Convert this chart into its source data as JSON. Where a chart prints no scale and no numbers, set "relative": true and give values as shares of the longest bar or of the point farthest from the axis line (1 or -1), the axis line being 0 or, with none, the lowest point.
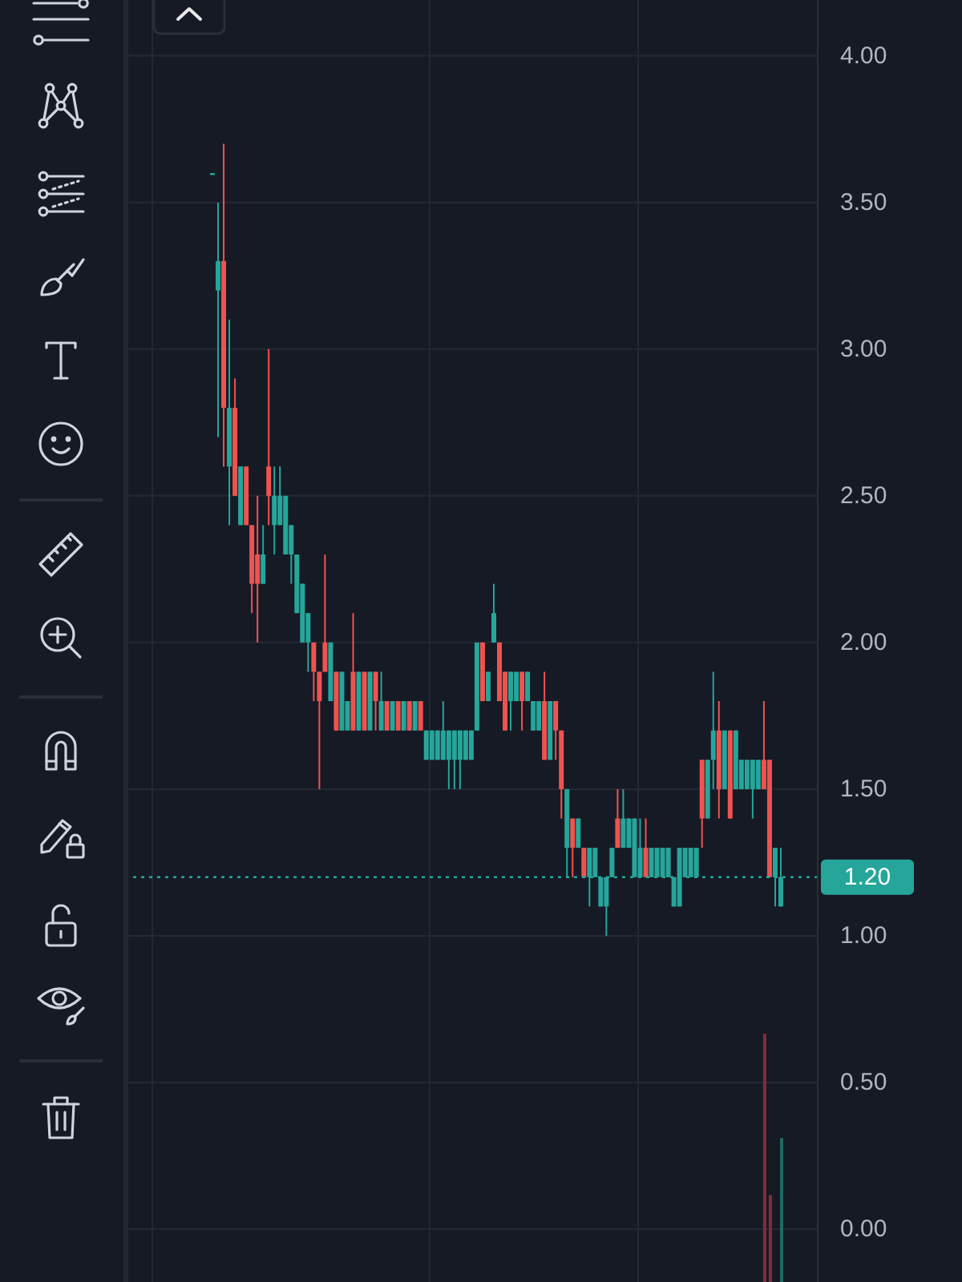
{
  "chart_data": [
    {
      "type": "candlestick",
      "categories": [
        null,
        null,
        null,
        null,
        null,
        null,
        null,
        null,
        null,
        null,
        null,
        null,
        null,
        null,
        null,
        null,
        null,
        null,
        null,
        null,
        null,
        null,
        null,
        null,
        null,
        null,
        null,
        null,
        null,
        null,
        null,
        null,
        null,
        null,
        null,
        null,
        null,
        null,
        null,
        null,
        null,
        null,
        null,
        null,
        null,
        null,
        null,
        null,
        null,
        null,
        null,
        null,
        null,
        null,
        null,
        null,
        null,
        null,
        null,
        null,
        null,
        null,
        null,
        null,
        null,
        null,
        null,
        null,
        null,
        null,
        null,
        null,
        null,
        null,
        null,
        null,
        null,
        null,
        null,
        null,
        null,
        null,
        null,
        null,
        null,
        null,
        null,
        null,
        null,
        null,
        null,
        null,
        null,
        null,
        null,
        null,
        null,
        null,
        null,
        null,
        null,
        null
      ],
      "ohlc": [
        [
          3.6,
          3.6,
          3.6,
          3.6
        ],
        [
          3.2,
          3.5,
          2.7,
          3.3
        ],
        [
          3.3,
          3.7,
          2.6,
          2.8
        ],
        [
          2.6,
          3.1,
          2.4,
          2.8
        ],
        [
          2.8,
          2.9,
          2.5,
          2.5
        ],
        [
          2.4,
          2.6,
          2.4,
          2.6
        ],
        [
          2.6,
          2.6,
          2.4,
          2.4
        ],
        [
          2.4,
          2.4,
          2.1,
          2.2
        ],
        [
          2.3,
          2.5,
          2.0,
          2.2
        ],
        [
          2.2,
          2.4,
          2.2,
          2.3
        ],
        [
          2.6,
          3.0,
          2.4,
          2.5
        ],
        [
          2.4,
          2.6,
          2.3,
          2.5
        ],
        [
          2.4,
          2.6,
          2.4,
          2.5
        ],
        [
          2.3,
          2.5,
          2.3,
          2.5
        ],
        [
          2.3,
          2.4,
          2.2,
          2.4
        ],
        [
          2.1,
          2.3,
          2.1,
          2.3
        ],
        [
          2.0,
          2.2,
          2.0,
          2.2
        ],
        [
          2.0,
          2.1,
          1.9,
          2.1
        ],
        [
          2.0,
          2.0,
          1.8,
          1.9
        ],
        [
          1.9,
          1.9,
          1.5,
          1.8
        ],
        [
          2.0,
          2.3,
          1.9,
          1.9
        ],
        [
          1.8,
          2.0,
          1.8,
          2.0
        ],
        [
          1.9,
          1.9,
          1.7,
          1.7
        ],
        [
          1.7,
          1.9,
          1.7,
          1.9
        ],
        [
          1.7,
          1.8,
          1.7,
          1.8
        ],
        [
          1.9,
          2.1,
          1.7,
          1.7
        ],
        [
          1.7,
          1.9,
          1.7,
          1.9
        ],
        [
          1.9,
          1.9,
          1.7,
          1.7
        ],
        [
          1.7,
          1.9,
          1.7,
          1.9
        ],
        [
          1.9,
          1.9,
          1.7,
          1.8
        ],
        [
          1.7,
          1.9,
          1.7,
          1.8
        ],
        [
          1.8,
          1.8,
          1.7,
          1.7
        ],
        [
          1.7,
          1.8,
          1.7,
          1.8
        ],
        [
          1.8,
          1.8,
          1.7,
          1.7
        ],
        [
          1.7,
          1.8,
          1.7,
          1.8
        ],
        [
          1.8,
          1.8,
          1.7,
          1.7
        ],
        [
          1.7,
          1.8,
          1.7,
          1.8
        ],
        [
          1.8,
          1.8,
          1.7,
          1.7
        ],
        [
          1.6,
          1.7,
          1.6,
          1.7
        ],
        [
          1.6,
          1.7,
          1.6,
          1.7
        ],
        [
          1.6,
          1.7,
          1.6,
          1.7
        ],
        [
          1.6,
          1.8,
          1.6,
          1.7
        ],
        [
          1.6,
          1.7,
          1.5,
          1.7
        ],
        [
          1.6,
          1.7,
          1.5,
          1.7
        ],
        [
          1.6,
          1.7,
          1.5,
          1.7
        ],
        [
          1.6,
          1.7,
          1.6,
          1.7
        ],
        [
          1.6,
          1.7,
          1.6,
          1.7
        ],
        [
          1.7,
          2.0,
          1.7,
          2.0
        ],
        [
          2.0,
          2.0,
          1.8,
          1.8
        ],
        [
          1.8,
          1.9,
          1.8,
          1.9
        ],
        [
          2.0,
          2.2,
          2.0,
          2.1
        ],
        [
          2.0,
          2.0,
          1.8,
          1.8
        ],
        [
          1.9,
          1.9,
          1.7,
          1.7
        ],
        [
          1.8,
          1.9,
          1.7,
          1.9
        ],
        [
          1.8,
          1.9,
          1.8,
          1.9
        ],
        [
          1.9,
          1.9,
          1.7,
          1.8
        ],
        [
          1.8,
          1.9,
          1.8,
          1.9
        ],
        [
          1.7,
          1.8,
          1.7,
          1.8
        ],
        [
          1.7,
          1.8,
          1.7,
          1.8
        ],
        [
          1.8,
          1.9,
          1.6,
          1.6
        ],
        [
          1.6,
          1.8,
          1.6,
          1.8
        ],
        [
          1.8,
          1.8,
          1.6,
          1.7
        ],
        [
          1.7,
          1.7,
          1.4,
          1.5
        ],
        [
          1.3,
          1.5,
          1.2,
          1.5
        ],
        [
          1.4,
          1.4,
          1.2,
          1.3
        ],
        [
          1.3,
          1.4,
          1.3,
          1.4
        ],
        [
          1.3,
          1.3,
          1.2,
          1.2
        ],
        [
          1.2,
          1.3,
          1.1,
          1.3
        ],
        [
          1.2,
          1.3,
          1.2,
          1.3
        ],
        [
          1.1,
          1.2,
          1.1,
          1.2
        ],
        [
          1.1,
          1.2,
          1.0,
          1.2
        ],
        [
          1.2,
          1.3,
          1.2,
          1.3
        ],
        [
          1.4,
          1.5,
          1.3,
          1.3
        ],
        [
          1.3,
          1.5,
          1.3,
          1.4
        ],
        [
          1.3,
          1.4,
          1.3,
          1.4
        ],
        [
          1.2,
          1.4,
          1.2,
          1.4
        ],
        [
          1.2,
          1.4,
          1.2,
          1.3
        ],
        [
          1.3,
          1.4,
          1.2,
          1.2
        ],
        [
          1.2,
          1.3,
          1.2,
          1.3
        ],
        [
          1.2,
          1.3,
          1.2,
          1.3
        ],
        [
          1.2,
          1.3,
          1.2,
          1.3
        ],
        [
          1.2,
          1.3,
          1.2,
          1.3
        ],
        [
          1.1,
          1.2,
          1.1,
          1.2
        ],
        [
          1.1,
          1.3,
          1.1,
          1.3
        ],
        [
          1.2,
          1.3,
          1.2,
          1.3
        ],
        [
          1.2,
          1.3,
          1.2,
          1.3
        ],
        [
          1.2,
          1.3,
          1.2,
          1.3
        ],
        [
          1.6,
          1.6,
          1.3,
          1.4
        ],
        [
          1.4,
          1.6,
          1.4,
          1.6
        ],
        [
          1.6,
          1.9,
          1.5,
          1.7
        ],
        [
          1.7,
          1.8,
          1.4,
          1.5
        ],
        [
          1.5,
          1.7,
          1.5,
          1.7
        ],
        [
          1.7,
          1.7,
          1.4,
          1.4
        ],
        [
          1.5,
          1.7,
          1.5,
          1.7
        ],
        [
          1.5,
          1.6,
          1.5,
          1.6
        ],
        [
          1.5,
          1.6,
          1.5,
          1.6
        ],
        [
          1.5,
          1.6,
          1.4,
          1.6
        ],
        [
          1.5,
          1.6,
          1.5,
          1.6
        ],
        [
          1.6,
          1.8,
          1.5,
          1.5
        ],
        [
          1.6,
          1.6,
          1.2,
          1.2
        ],
        [
          1.2,
          1.3,
          1.1,
          1.3
        ],
        [
          1.1,
          1.3,
          1.1,
          1.2
        ]
      ],
      "colors": [
        "#26a69a",
        "#26a69a",
        "#ef5350",
        "#26a69a",
        "#ef5350",
        "#26a69a",
        "#ef5350",
        "#ef5350",
        "#ef5350",
        "#26a69a",
        "#ef5350",
        "#26a69a",
        "#26a69a",
        "#26a69a",
        "#26a69a",
        "#26a69a",
        "#26a69a",
        "#26a69a",
        "#ef5350",
        "#ef5350",
        "#ef5350",
        "#26a69a",
        "#ef5350",
        "#26a69a",
        "#26a69a",
        "#ef5350",
        "#26a69a",
        "#ef5350",
        "#26a69a",
        "#ef5350",
        "#26a69a",
        "#ef5350",
        "#26a69a",
        "#ef5350",
        "#26a69a",
        "#ef5350",
        "#26a69a",
        "#ef5350",
        "#26a69a",
        "#26a69a",
        "#26a69a",
        "#26a69a",
        "#26a69a",
        "#26a69a",
        "#26a69a",
        "#26a69a",
        "#26a69a",
        "#26a69a",
        "#ef5350",
        "#26a69a",
        "#26a69a",
        "#ef5350",
        "#ef5350",
        "#26a69a",
        "#26a69a",
        "#ef5350",
        "#26a69a",
        "#26a69a",
        "#26a69a",
        "#ef5350",
        "#26a69a",
        "#ef5350",
        "#ef5350",
        "#26a69a",
        "#ef5350",
        "#26a69a",
        "#ef5350",
        "#26a69a",
        "#26a69a",
        "#26a69a",
        "#26a69a",
        "#26a69a",
        "#ef5350",
        "#26a69a",
        "#26a69a",
        "#26a69a",
        "#26a69a",
        "#ef5350",
        "#26a69a",
        "#26a69a",
        "#26a69a",
        "#26a69a",
        "#26a69a",
        "#26a69a",
        "#26a69a",
        "#26a69a",
        "#26a69a",
        "#ef5350",
        "#26a69a",
        "#26a69a",
        "#ef5350",
        "#26a69a",
        "#ef5350",
        "#26a69a",
        "#26a69a",
        "#26a69a",
        "#26a69a",
        "#26a69a",
        "#ef5350",
        "#ef5350",
        "#26a69a",
        "#26a69a"
      ],
      "ylim": [
        -0.18,
        4.19
      ],
      "yticks": [
        {
          "value": 0,
          "label": "0.00"
        },
        {
          "value": 0.5,
          "label": "0.50"
        },
        {
          "value": 1,
          "label": "1.00"
        },
        {
          "value": 1.5,
          "label": "1.50"
        },
        {
          "value": 2,
          "label": "2.00"
        },
        {
          "value": 2.5,
          "label": "2.50"
        },
        {
          "value": 3,
          "label": "3.00"
        },
        {
          "value": 3.5,
          "label": "3.50"
        },
        {
          "value": 4,
          "label": "4.00"
        }
      ],
      "grid": true,
      "ref_lines": [
        {
          "axis": "y",
          "value": 1.2,
          "label": "1.20",
          "color": "#26a69a",
          "line_style": "dotted"
        }
      ]
    },
    {
      "type": "bar",
      "relative": true,
      "categories": [
        null,
        null,
        null,
        null,
        null,
        null,
        null,
        null,
        null,
        null,
        null,
        null,
        null,
        null,
        null,
        null,
        null,
        null,
        null,
        null,
        null,
        null,
        null,
        null,
        null,
        null,
        null,
        null,
        null,
        null,
        null,
        null,
        null,
        null,
        null,
        null,
        null,
        null,
        null,
        null,
        null,
        null,
        null,
        null,
        null,
        null,
        null,
        null,
        null,
        null,
        null,
        null,
        null,
        null,
        null,
        null,
        null,
        null,
        null,
        null,
        null,
        null,
        null,
        null,
        null,
        null,
        null,
        null,
        null,
        null,
        null,
        null,
        null,
        null,
        null,
        null,
        null,
        null,
        null,
        null,
        null,
        null,
        null,
        null,
        null,
        null,
        null,
        null,
        null,
        null,
        null,
        null,
        null,
        null,
        null,
        null,
        null,
        null,
        null,
        null,
        null,
        null
      ],
      "values": [
        null,
        null,
        null,
        null,
        null,
        null,
        null,
        null,
        null,
        null,
        null,
        null,
        null,
        null,
        null,
        null,
        null,
        null,
        null,
        null,
        null,
        null,
        null,
        null,
        null,
        null,
        null,
        null,
        null,
        null,
        null,
        null,
        null,
        null,
        null,
        null,
        null,
        null,
        null,
        null,
        null,
        null,
        null,
        null,
        null,
        null,
        null,
        null,
        null,
        null,
        null,
        null,
        null,
        null,
        null,
        null,
        null,
        null,
        null,
        null,
        null,
        null,
        null,
        null,
        null,
        null,
        null,
        null,
        null,
        null,
        null,
        null,
        null,
        null,
        null,
        null,
        null,
        null,
        null,
        null,
        null,
        null,
        null,
        null,
        null,
        null,
        null,
        null,
        null,
        null,
        null,
        null,
        null,
        null,
        null,
        null,
        null,
        null,
        1,
        0.35,
        null,
        0.58
      ],
      "colors": [
        null,
        null,
        null,
        null,
        null,
        null,
        null,
        null,
        null,
        null,
        null,
        null,
        null,
        null,
        null,
        null,
        null,
        null,
        null,
        null,
        null,
        null,
        null,
        null,
        null,
        null,
        null,
        null,
        null,
        null,
        null,
        null,
        null,
        null,
        null,
        null,
        null,
        null,
        null,
        null,
        null,
        null,
        null,
        null,
        null,
        null,
        null,
        null,
        null,
        null,
        null,
        null,
        null,
        null,
        null,
        null,
        null,
        null,
        null,
        null,
        null,
        null,
        null,
        null,
        null,
        null,
        null,
        null,
        null,
        null,
        null,
        null,
        null,
        null,
        null,
        null,
        null,
        null,
        null,
        null,
        null,
        null,
        null,
        null,
        null,
        null,
        null,
        null,
        null,
        null,
        null,
        null,
        null,
        null,
        null,
        null,
        null,
        null,
        "#7b2f3a",
        "#7b2f3a",
        null,
        "#1f6b63"
      ]
    }
  ]
}
